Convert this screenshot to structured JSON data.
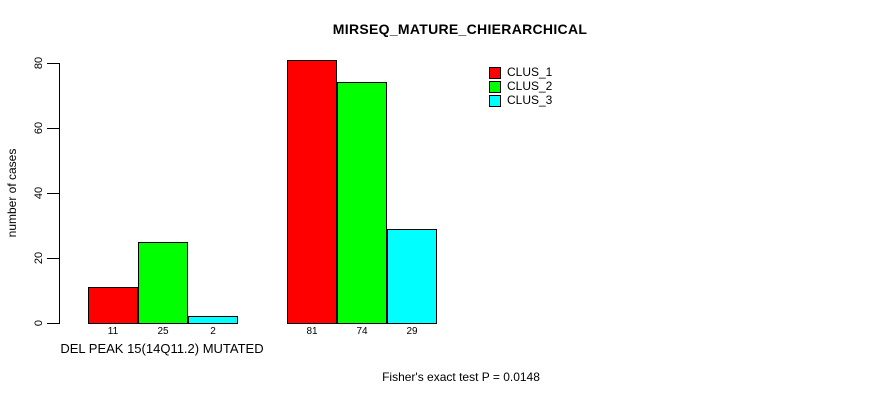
{
  "page": {
    "background": "#ffffff",
    "text_color": "#000000"
  },
  "chart_data": {
    "type": "bar",
    "title": "MIRSEQ_MATURE_CHIERARCHICAL",
    "ylabel": "number of cases",
    "xlabel": "",
    "ylim": [
      0,
      80
    ],
    "yticks": [
      0,
      20,
      40,
      60,
      80
    ],
    "categories": [
      "DEL PEAK 15(14Q11.2) MUTATED",
      ""
    ],
    "series": [
      {
        "name": "CLUS_1",
        "color": "#ff0000",
        "values": [
          11,
          81
        ]
      },
      {
        "name": "CLUS_2",
        "color": "#00ff00",
        "values": [
          25,
          74
        ]
      },
      {
        "name": "CLUS_3",
        "color": "#00ffff",
        "values": [
          2,
          29
        ]
      }
    ],
    "bar_value_labels": [
      [
        11,
        25,
        2
      ],
      [
        81,
        74,
        29
      ]
    ],
    "legend": {
      "position": "top-right",
      "entries": [
        "CLUS_1",
        "CLUS_2",
        "CLUS_3"
      ]
    },
    "grid": false,
    "annotation": "Fisher's exact test P = 0.0148"
  }
}
